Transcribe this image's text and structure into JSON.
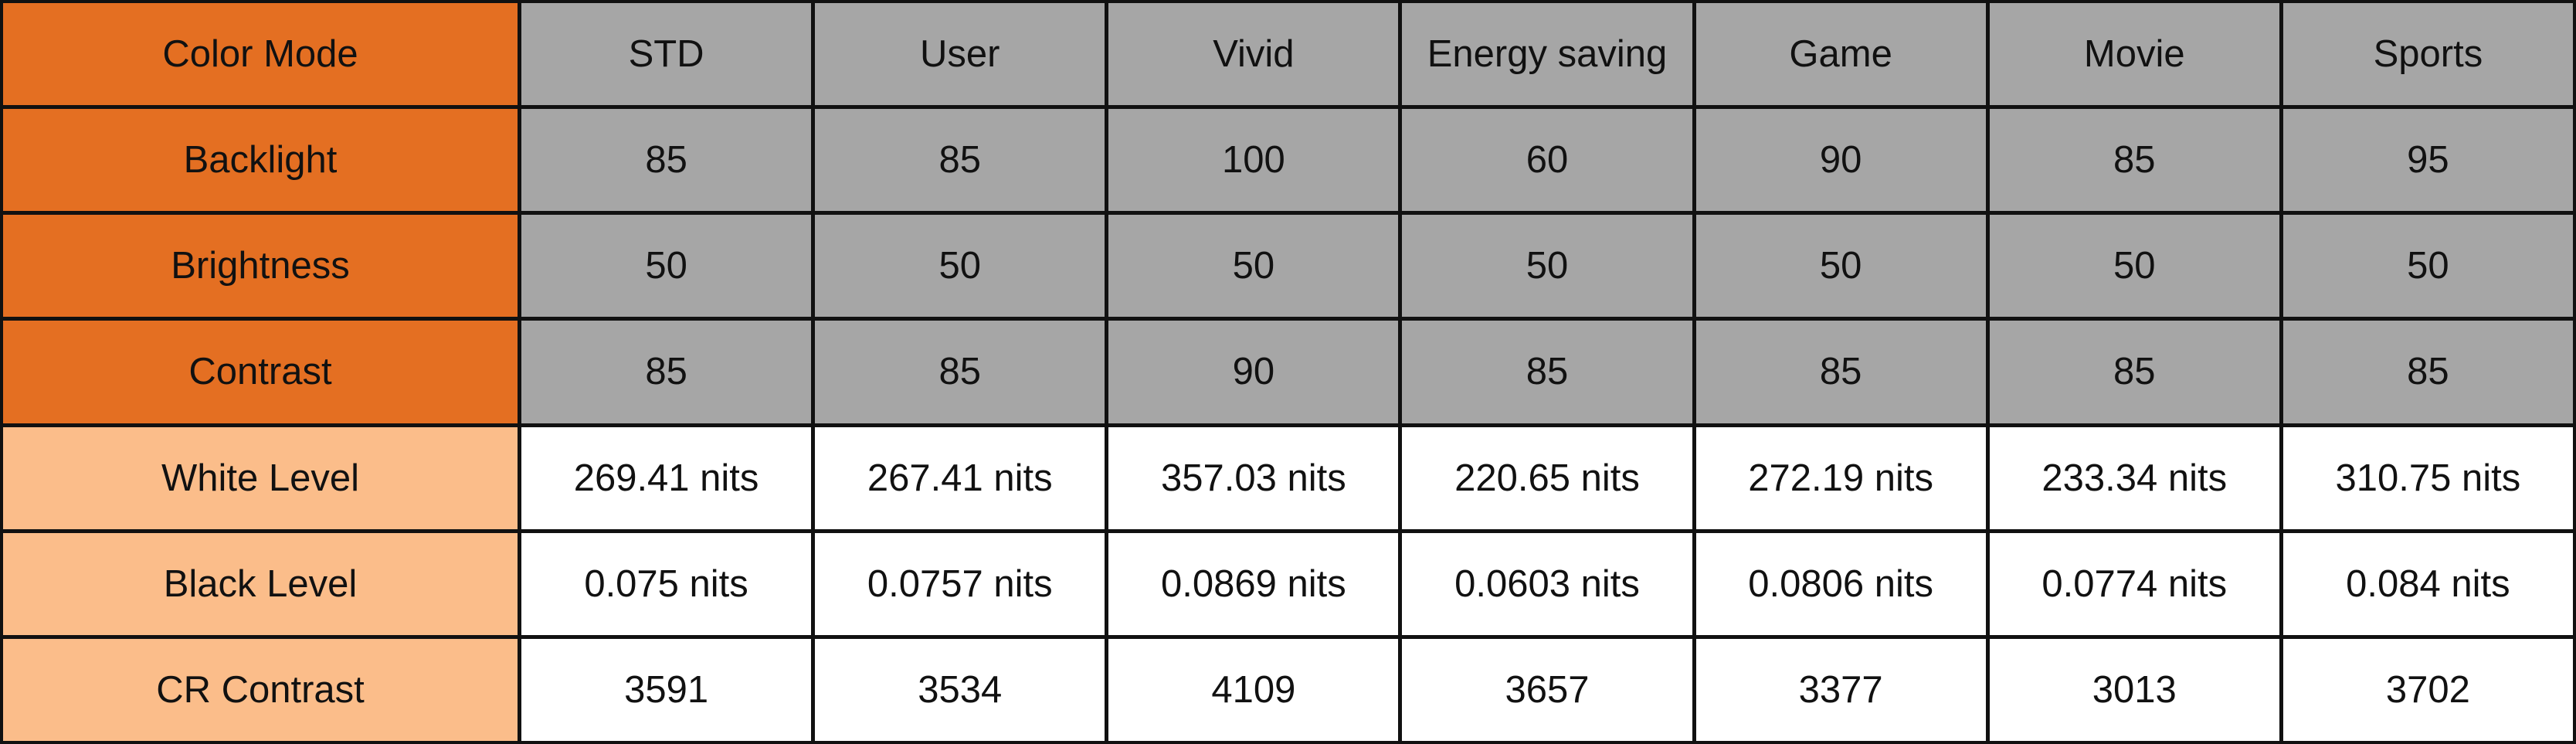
{
  "table": {
    "header": [
      "Color Mode",
      "STD",
      "User",
      "Vivid",
      "Energy saving",
      "Game",
      "Movie",
      "Sports"
    ],
    "rows": [
      [
        "Backlight",
        "85",
        "85",
        "100",
        "60",
        "90",
        "85",
        "95"
      ],
      [
        "Brightness",
        "50",
        "50",
        "50",
        "50",
        "50",
        "50",
        "50"
      ],
      [
        "Contrast",
        "85",
        "85",
        "90",
        "85",
        "85",
        "85",
        "85"
      ],
      [
        "White Level",
        "269.41 nits",
        "267.41 nits",
        "357.03 nits",
        "220.65 nits",
        "272.19 nits",
        "233.34 nits",
        "310.75 nits"
      ],
      [
        "Black Level",
        "0.075 nits",
        "0.0757 nits",
        "0.0869 nits",
        "0.0603 nits",
        "0.0806 nits",
        "0.0774 nits",
        "0.084 nits"
      ],
      [
        "CR Contrast",
        "3591",
        "3534",
        "4109",
        "3657",
        "3377",
        "3013",
        "3702"
      ]
    ]
  }
}
